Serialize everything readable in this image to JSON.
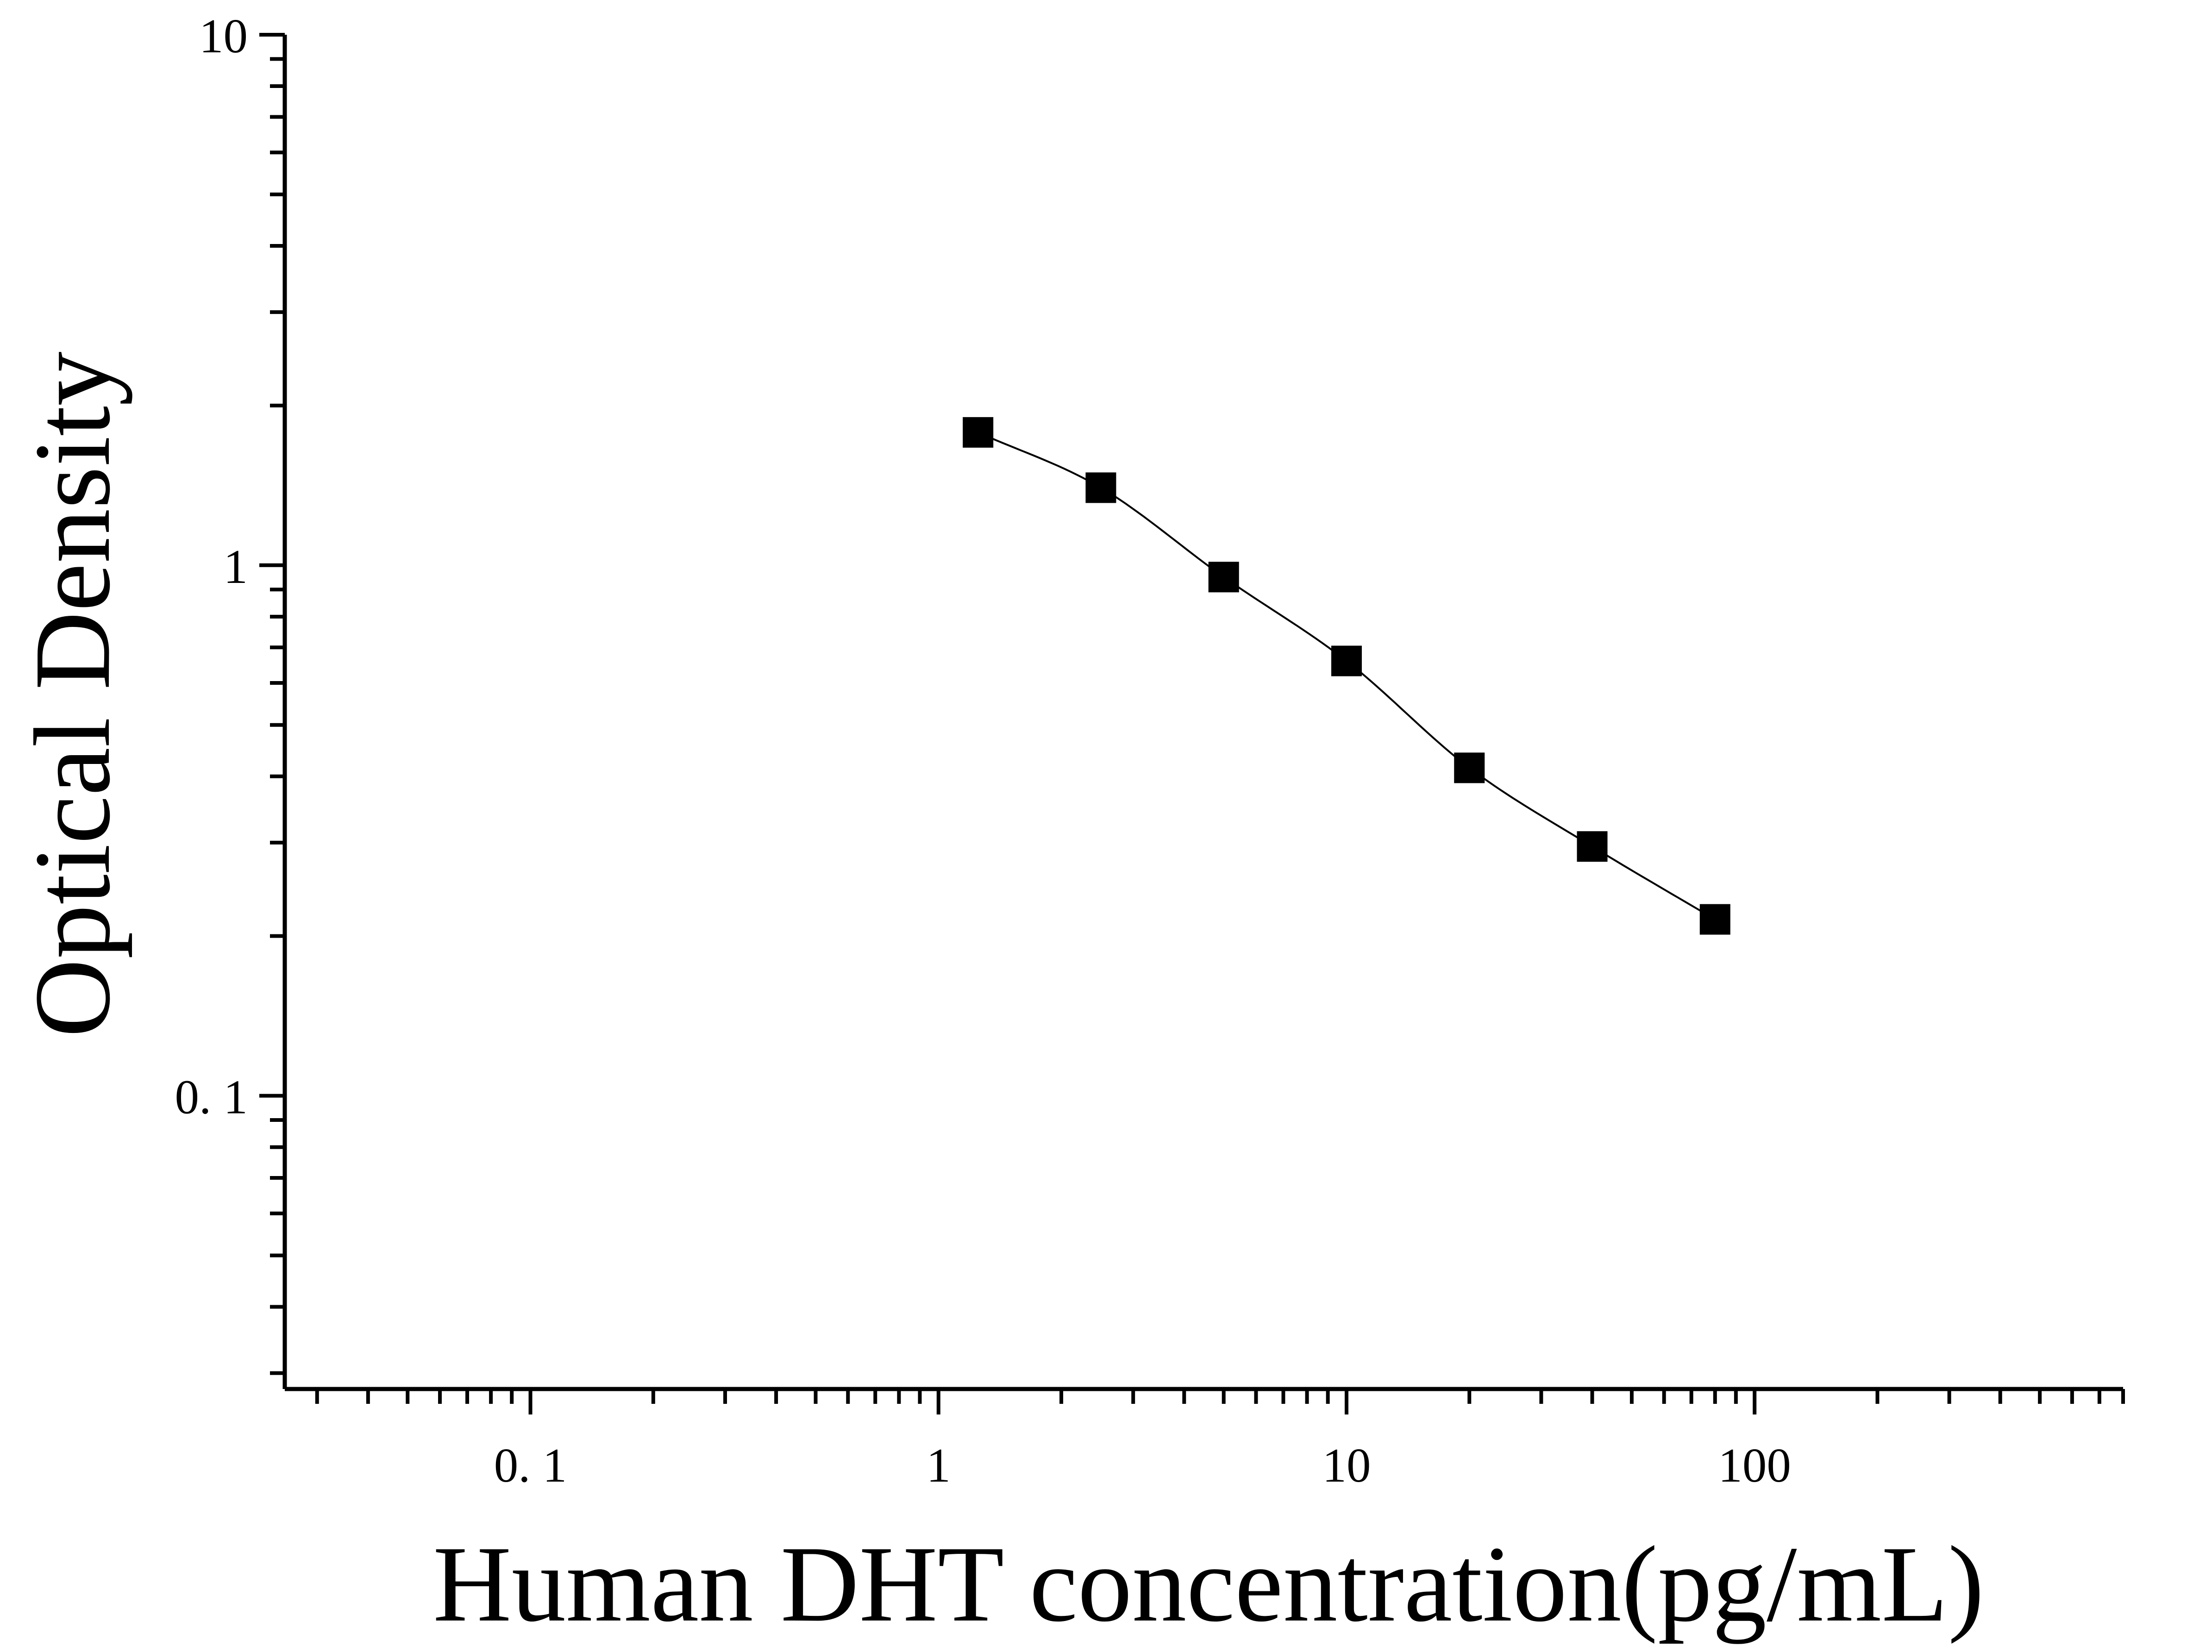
{
  "chart_data": {
    "type": "scatter",
    "title": "",
    "xlabel": "Human DHT concentration(pg/mL)",
    "ylabel": "Optical Density",
    "x_scale": "log",
    "y_scale": "log",
    "xlim": [
      0.025,
      800
    ],
    "ylim": [
      0.028,
      10
    ],
    "x_ticks": [
      {
        "value": 0.1,
        "label": "0. 1"
      },
      {
        "value": 1,
        "label": "1"
      },
      {
        "value": 10,
        "label": "10"
      },
      {
        "value": 100,
        "label": "100"
      }
    ],
    "y_ticks": [
      {
        "value": 0.1,
        "label": "0. 1"
      },
      {
        "value": 1,
        "label": "1"
      },
      {
        "value": 10,
        "label": "10"
      }
    ],
    "grid": false,
    "legend": "none",
    "series": [
      {
        "marker": "square",
        "color": "#000000",
        "fit_line": "smooth",
        "points": [
          {
            "x": 1.25,
            "y": 1.78
          },
          {
            "x": 2.5,
            "y": 1.4
          },
          {
            "x": 5,
            "y": 0.95
          },
          {
            "x": 10,
            "y": 0.66
          },
          {
            "x": 20,
            "y": 0.415
          },
          {
            "x": 40,
            "y": 0.295
          },
          {
            "x": 80,
            "y": 0.215
          }
        ]
      }
    ]
  }
}
